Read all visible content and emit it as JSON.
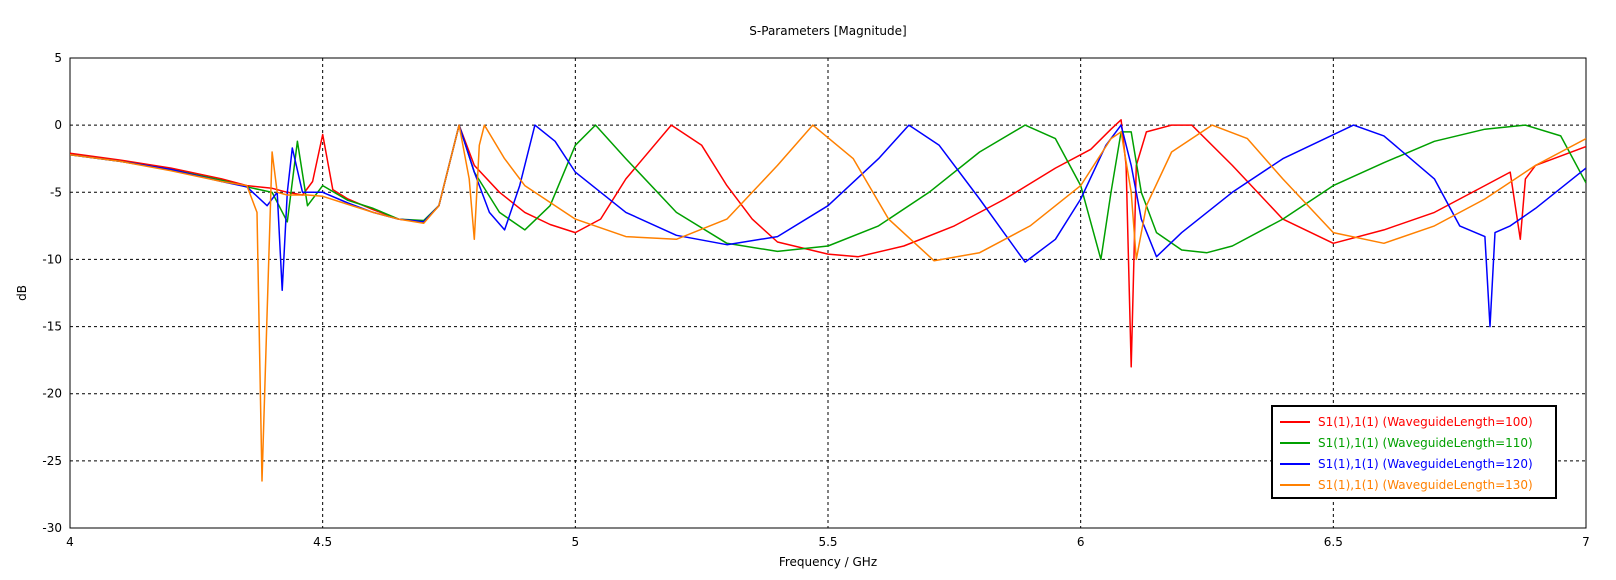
{
  "chart_data": {
    "type": "line",
    "title": "S-Parameters [Magnitude]",
    "xlabel": "Frequency / GHz",
    "ylabel": "dB",
    "xlim": [
      4,
      7
    ],
    "ylim": [
      -30,
      5
    ],
    "xticks": [
      "4",
      "4.5",
      "5",
      "5.5",
      "6",
      "6.5",
      "7"
    ],
    "yticks": [
      "5",
      "0",
      "-5",
      "-10",
      "-15",
      "-20",
      "-25",
      "-30"
    ],
    "grid": true,
    "legend_position": "bottom-right",
    "series": [
      {
        "name": "S1(1),1(1) (WaveguideLength=100)",
        "color": "#ff0000",
        "x": [
          4.0,
          4.1,
          4.2,
          4.3,
          4.35,
          4.4,
          4.43,
          4.46,
          4.48,
          4.5,
          4.52,
          4.55,
          4.6,
          4.65,
          4.7,
          4.73,
          4.77,
          4.8,
          4.85,
          4.9,
          4.95,
          5.0,
          5.05,
          5.1,
          5.19,
          5.25,
          5.3,
          5.35,
          5.4,
          5.5,
          5.56,
          5.65,
          5.75,
          5.85,
          5.95,
          6.02,
          6.06,
          6.08,
          6.09,
          6.1,
          6.11,
          6.13,
          6.18,
          6.22,
          6.3,
          6.4,
          6.5,
          6.6,
          6.7,
          6.8,
          6.85,
          6.87,
          6.88,
          6.9,
          7.0
        ],
        "values": [
          -2.1,
          -2.6,
          -3.2,
          -4.0,
          -4.5,
          -4.7,
          -5.0,
          -5.2,
          -4.2,
          -0.7,
          -4.8,
          -5.5,
          -6.3,
          -7.0,
          -7.2,
          -6.0,
          0.0,
          -3.0,
          -5.0,
          -6.5,
          -7.4,
          -8.0,
          -7.0,
          -4.0,
          0.0,
          -1.5,
          -4.5,
          -7.0,
          -8.7,
          -9.6,
          -9.8,
          -9.0,
          -7.5,
          -5.5,
          -3.2,
          -1.8,
          -0.3,
          0.4,
          -3.0,
          -18.0,
          -3.0,
          -0.5,
          0.0,
          0.0,
          -3.0,
          -7.0,
          -8.8,
          -7.8,
          -6.5,
          -4.5,
          -3.5,
          -8.5,
          -4.0,
          -3.0,
          -1.6
        ]
      },
      {
        "name": "S1(1),1(1) (WaveguideLength=110)",
        "color": "#00a000",
        "x": [
          4.0,
          4.1,
          4.2,
          4.3,
          4.35,
          4.4,
          4.43,
          4.45,
          4.47,
          4.5,
          4.55,
          4.6,
          4.65,
          4.7,
          4.73,
          4.77,
          4.8,
          4.85,
          4.9,
          4.95,
          5.0,
          5.04,
          5.1,
          5.2,
          5.3,
          5.4,
          5.5,
          5.6,
          5.7,
          5.8,
          5.89,
          5.95,
          6.0,
          6.04,
          6.06,
          6.08,
          6.1,
          6.12,
          6.15,
          6.2,
          6.25,
          6.3,
          6.4,
          6.5,
          6.6,
          6.7,
          6.8,
          6.88,
          6.95,
          7.0
        ],
        "values": [
          -2.2,
          -2.7,
          -3.3,
          -4.1,
          -4.6,
          -5.0,
          -7.2,
          -1.2,
          -6.0,
          -4.5,
          -5.6,
          -6.2,
          -7.0,
          -7.1,
          -6.0,
          0.0,
          -3.5,
          -6.5,
          -7.8,
          -6.0,
          -1.5,
          0.0,
          -2.5,
          -6.5,
          -8.8,
          -9.4,
          -9.0,
          -7.5,
          -5.0,
          -2.0,
          0.0,
          -1.0,
          -4.5,
          -10.0,
          -5.0,
          -0.5,
          -0.5,
          -5.0,
          -8.0,
          -9.3,
          -9.5,
          -9.0,
          -7.0,
          -4.5,
          -2.8,
          -1.2,
          -0.3,
          0.0,
          -0.8,
          -4.3
        ]
      },
      {
        "name": "S1(1),1(1) (WaveguideLength=120)",
        "color": "#0000ff",
        "x": [
          4.0,
          4.1,
          4.2,
          4.3,
          4.35,
          4.39,
          4.41,
          4.42,
          4.43,
          4.44,
          4.46,
          4.5,
          4.55,
          4.6,
          4.65,
          4.7,
          4.73,
          4.77,
          4.8,
          4.83,
          4.86,
          4.89,
          4.92,
          4.96,
          5.0,
          5.1,
          5.2,
          5.3,
          5.4,
          5.5,
          5.6,
          5.66,
          5.72,
          5.8,
          5.89,
          5.95,
          6.0,
          6.05,
          6.08,
          6.1,
          6.12,
          6.15,
          6.2,
          6.3,
          6.4,
          6.54,
          6.6,
          6.7,
          6.75,
          6.8,
          6.81,
          6.82,
          6.85,
          6.9,
          7.0
        ],
        "values": [
          -2.2,
          -2.7,
          -3.3,
          -4.2,
          -4.6,
          -6.0,
          -5.0,
          -12.3,
          -5.0,
          -1.7,
          -5.0,
          -5.0,
          -5.8,
          -6.5,
          -7.0,
          -7.2,
          -6.0,
          0.0,
          -3.5,
          -6.5,
          -7.8,
          -4.5,
          0.0,
          -1.2,
          -3.5,
          -6.5,
          -8.2,
          -8.9,
          -8.3,
          -6.0,
          -2.5,
          0.0,
          -1.5,
          -5.5,
          -10.2,
          -8.5,
          -5.5,
          -1.5,
          0.0,
          -3.0,
          -7.0,
          -9.8,
          -8.0,
          -5.0,
          -2.5,
          0.0,
          -0.8,
          -4.0,
          -7.5,
          -8.3,
          -15.0,
          -8.0,
          -7.5,
          -6.2,
          -3.2
        ]
      },
      {
        "name": "S1(1),1(1) (WaveguideLength=130)",
        "color": "#ff8000",
        "x": [
          4.0,
          4.1,
          4.2,
          4.3,
          4.35,
          4.37,
          4.38,
          4.39,
          4.4,
          4.41,
          4.43,
          4.47,
          4.5,
          4.55,
          4.6,
          4.65,
          4.7,
          4.73,
          4.77,
          4.79,
          4.8,
          4.81,
          4.82,
          4.86,
          4.9,
          5.0,
          5.1,
          5.2,
          5.3,
          5.4,
          5.47,
          5.55,
          5.62,
          5.71,
          5.8,
          5.9,
          6.0,
          6.06,
          6.08,
          6.1,
          6.11,
          6.13,
          6.18,
          6.26,
          6.33,
          6.4,
          6.5,
          6.6,
          6.7,
          6.8,
          6.9,
          7.0
        ],
        "values": [
          -2.2,
          -2.7,
          -3.4,
          -4.2,
          -4.5,
          -6.5,
          -26.5,
          -14.0,
          -2.0,
          -5.0,
          -5.2,
          -5.2,
          -5.3,
          -5.9,
          -6.5,
          -7.0,
          -7.3,
          -6.0,
          0.0,
          -4.0,
          -8.5,
          -1.5,
          0.0,
          -2.5,
          -4.5,
          -7.0,
          -8.3,
          -8.5,
          -7.0,
          -3.0,
          0.0,
          -2.5,
          -7.0,
          -10.1,
          -9.5,
          -7.5,
          -4.5,
          -1.0,
          -0.5,
          -5.0,
          -10.0,
          -6.0,
          -2.0,
          0.0,
          -1.0,
          -4.0,
          -8.0,
          -8.8,
          -7.5,
          -5.5,
          -3.0,
          -1.0
        ]
      }
    ]
  }
}
